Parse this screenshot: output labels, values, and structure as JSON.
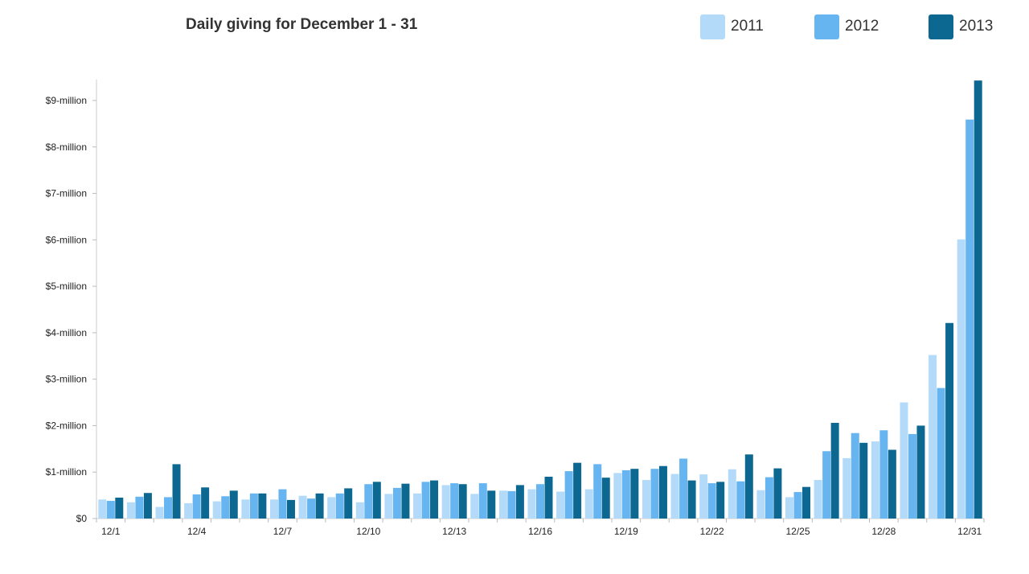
{
  "chart_data": {
    "type": "bar",
    "title": "Daily giving for December 1 - 31",
    "xlabel": "",
    "ylabel": "",
    "ylim": [
      0,
      9.45
    ],
    "yticks": [
      {
        "value": 0,
        "label": "$0"
      },
      {
        "value": 1,
        "label": "$1-million"
      },
      {
        "value": 2,
        "label": "$2-million"
      },
      {
        "value": 3,
        "label": "$3-million"
      },
      {
        "value": 4,
        "label": "$4-million"
      },
      {
        "value": 5,
        "label": "$5-million"
      },
      {
        "value": 6,
        "label": "$6-million"
      },
      {
        "value": 7,
        "label": "$7-million"
      },
      {
        "value": 8,
        "label": "$8-million"
      },
      {
        "value": 9,
        "label": "$9-million"
      }
    ],
    "categories": [
      "12/1",
      "12/2",
      "12/3",
      "12/4",
      "12/5",
      "12/6",
      "12/7",
      "12/8",
      "12/9",
      "12/10",
      "12/11",
      "12/12",
      "12/13",
      "12/14",
      "12/15",
      "12/16",
      "12/17",
      "12/18",
      "12/19",
      "12/20",
      "12/21",
      "12/22",
      "12/23",
      "12/24",
      "12/25",
      "12/26",
      "12/27",
      "12/28",
      "12/29",
      "12/30",
      "12/31"
    ],
    "xtick_labels": [
      "12/1",
      "12/4",
      "12/7",
      "12/10",
      "12/13",
      "12/16",
      "12/19",
      "12/22",
      "12/25",
      "12/28",
      "12/31"
    ],
    "xtick_categories": [
      "12/1",
      "12/4",
      "12/7",
      "12/10",
      "12/13",
      "12/16",
      "12/19",
      "12/22",
      "12/25",
      "12/28",
      "12/31"
    ],
    "grid": false,
    "legend_position": "top-right",
    "series": [
      {
        "name": "2011",
        "color": "#b3daf8",
        "values": [
          0.41,
          0.35,
          0.25,
          0.33,
          0.37,
          0.41,
          0.41,
          0.49,
          0.46,
          0.35,
          0.53,
          0.54,
          0.72,
          0.53,
          0.6,
          0.63,
          0.58,
          0.63,
          0.98,
          0.83,
          0.96,
          0.95,
          1.06,
          0.61,
          0.46,
          0.83,
          1.3,
          1.66,
          2.5,
          3.52,
          6.01
        ]
      },
      {
        "name": "2012",
        "color": "#66b5f0",
        "values": [
          0.38,
          0.47,
          0.46,
          0.52,
          0.48,
          0.54,
          0.63,
          0.43,
          0.54,
          0.74,
          0.66,
          0.79,
          0.76,
          0.76,
          0.59,
          0.74,
          1.02,
          1.17,
          1.04,
          1.07,
          1.29,
          0.76,
          0.8,
          0.89,
          0.57,
          1.45,
          1.84,
          1.9,
          1.82,
          2.81,
          8.59
        ]
      },
      {
        "name": "2013",
        "color": "#0d6891",
        "values": [
          0.45,
          0.55,
          1.17,
          0.67,
          0.6,
          0.54,
          0.4,
          0.54,
          0.65,
          0.79,
          0.75,
          0.82,
          0.74,
          0.6,
          0.72,
          0.9,
          1.2,
          0.88,
          1.07,
          1.13,
          0.82,
          0.79,
          1.38,
          1.08,
          0.68,
          2.06,
          1.63,
          1.48,
          2.0,
          4.21,
          9.43
        ]
      }
    ]
  }
}
